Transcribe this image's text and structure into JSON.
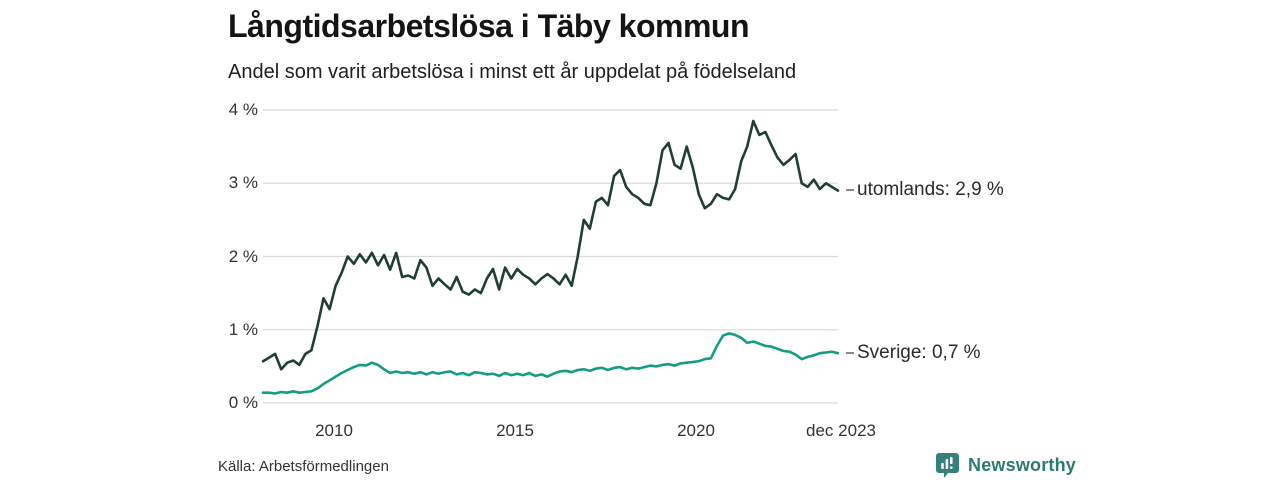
{
  "header": {
    "title": "Långtidsarbetslösa i Täby kommun",
    "subtitle": "Andel som varit arbetslösa i minst ett år uppdelat på födelseland"
  },
  "chart_data": {
    "type": "line",
    "title": "Långtidsarbetslösa i Täby kommun",
    "subtitle": "Andel som varit arbetslösa i minst ett år uppdelat på födelseland",
    "unit": "%",
    "grid": true,
    "legend_position": "right-end-labels",
    "x_domain_years": [
      2008.0,
      2023.92
    ],
    "ylim": [
      0,
      4
    ],
    "y_ticks": [
      {
        "value": 4,
        "label": "4 %"
      },
      {
        "value": 3,
        "label": "3 %"
      },
      {
        "value": 2,
        "label": "2 %"
      },
      {
        "value": 1,
        "label": "1 %"
      },
      {
        "value": 0,
        "label": "0 %"
      }
    ],
    "x_ticks": [
      {
        "value": 2010,
        "label": "2010"
      },
      {
        "value": 2015,
        "label": "2015"
      },
      {
        "value": 2020,
        "label": "2020"
      },
      {
        "value": 2023.92,
        "label": "dec 2023"
      }
    ],
    "series": [
      {
        "name": "utomlands",
        "end_label": "utomlands: 2,9 %",
        "end_value": "2,9 %",
        "color": "#203e37",
        "values": [
          0.57,
          0.62,
          0.67,
          0.46,
          0.55,
          0.58,
          0.52,
          0.67,
          0.72,
          1.05,
          1.43,
          1.28,
          1.6,
          1.78,
          2.0,
          1.9,
          2.03,
          1.92,
          2.05,
          1.88,
          2.02,
          1.82,
          2.05,
          1.72,
          1.74,
          1.7,
          1.95,
          1.85,
          1.6,
          1.7,
          1.62,
          1.55,
          1.72,
          1.52,
          1.48,
          1.55,
          1.5,
          1.7,
          1.83,
          1.55,
          1.85,
          1.7,
          1.83,
          1.75,
          1.7,
          1.62,
          1.7,
          1.76,
          1.7,
          1.62,
          1.75,
          1.6,
          2.0,
          2.5,
          2.38,
          2.75,
          2.8,
          2.7,
          3.1,
          3.18,
          2.95,
          2.85,
          2.8,
          2.72,
          2.7,
          3.0,
          3.45,
          3.55,
          3.25,
          3.2,
          3.5,
          3.22,
          2.85,
          2.66,
          2.72,
          2.85,
          2.8,
          2.78,
          2.92,
          3.3,
          3.5,
          3.85,
          3.66,
          3.7,
          3.52,
          3.35,
          3.25,
          3.32,
          3.4,
          3.0,
          2.95,
          3.05,
          2.92,
          3.0,
          2.95,
          2.9
        ]
      },
      {
        "name": "Sverige",
        "end_label": "Sverige: 0,7 %",
        "end_value": "0,7 %",
        "color": "#169c85",
        "values": [
          0.14,
          0.14,
          0.13,
          0.15,
          0.14,
          0.16,
          0.14,
          0.15,
          0.16,
          0.2,
          0.26,
          0.31,
          0.36,
          0.41,
          0.45,
          0.49,
          0.52,
          0.51,
          0.55,
          0.52,
          0.46,
          0.41,
          0.43,
          0.41,
          0.42,
          0.4,
          0.42,
          0.39,
          0.42,
          0.4,
          0.42,
          0.43,
          0.39,
          0.41,
          0.38,
          0.42,
          0.41,
          0.39,
          0.4,
          0.37,
          0.41,
          0.38,
          0.4,
          0.38,
          0.41,
          0.37,
          0.39,
          0.36,
          0.4,
          0.43,
          0.44,
          0.42,
          0.45,
          0.46,
          0.44,
          0.47,
          0.48,
          0.45,
          0.48,
          0.49,
          0.46,
          0.48,
          0.47,
          0.49,
          0.51,
          0.5,
          0.52,
          0.53,
          0.51,
          0.54,
          0.55,
          0.56,
          0.57,
          0.6,
          0.61,
          0.78,
          0.92,
          0.95,
          0.93,
          0.89,
          0.82,
          0.84,
          0.81,
          0.78,
          0.77,
          0.74,
          0.71,
          0.7,
          0.66,
          0.6,
          0.63,
          0.65,
          0.68,
          0.69,
          0.7,
          0.68
        ]
      }
    ]
  },
  "footer": {
    "source": "Källa: Arbetsförmedlingen",
    "brand": "Newsworthy"
  },
  "colors": {
    "grid": "#d9d9d9",
    "brand_teal": "#35807a",
    "series_dark": "#203e37",
    "series_light": "#169c85"
  }
}
